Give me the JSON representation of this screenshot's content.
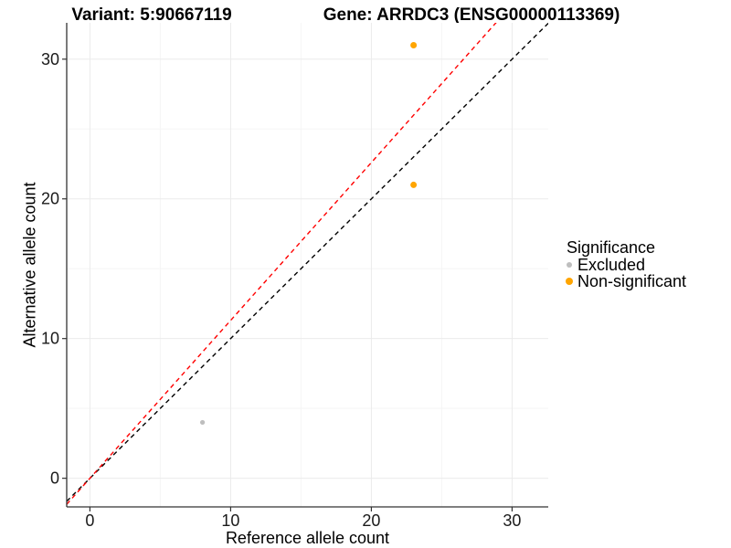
{
  "chart_data": {
    "type": "scatter",
    "title_left": "Variant: 5:90667119",
    "title_right": "Gene: ARRDC3 (ENSG00000113369)",
    "xlabel": "Reference allele count",
    "ylabel": "Alternative allele count",
    "x_ticks": [
      0,
      10,
      20,
      30
    ],
    "y_ticks": [
      0,
      10,
      20,
      30
    ],
    "x_minor": [
      5,
      15,
      25
    ],
    "y_minor": [
      5,
      15,
      25
    ],
    "x_range": [
      -1.65,
      32.57
    ],
    "y_range": [
      -2.05,
      32.6
    ],
    "grid": true,
    "legend_position": "right",
    "series": [
      {
        "name": "Excluded",
        "color": "#BEBEBE",
        "radius": 2.6,
        "points": [
          [
            8,
            4
          ]
        ]
      },
      {
        "name": "Non-significant",
        "color": "#FFA500",
        "radius": 3.5,
        "points": [
          [
            23,
            31
          ],
          [
            23,
            21
          ]
        ]
      }
    ],
    "lines": [
      {
        "name": "identity-line",
        "color": "#000000",
        "slope": 1.0,
        "intercept": 0,
        "dash": "5,4"
      },
      {
        "name": "expected-ratio-line",
        "color": "#FF0000",
        "slope": 1.13,
        "intercept": 0,
        "dash": "5,4"
      }
    ],
    "legend": {
      "title": "Significance",
      "entries": [
        {
          "label": "Excluded",
          "color": "#BEBEBE",
          "radius": 3
        },
        {
          "label": "Non-significant",
          "color": "#FFA500",
          "radius": 4
        }
      ]
    }
  },
  "colors": {
    "background": "#FFFFFF",
    "grid_major": "#EBEBEB",
    "grid_minor": "#F5F5F5",
    "axis_line": "#333333",
    "tick_mark": "#333333",
    "text": "#000000"
  }
}
